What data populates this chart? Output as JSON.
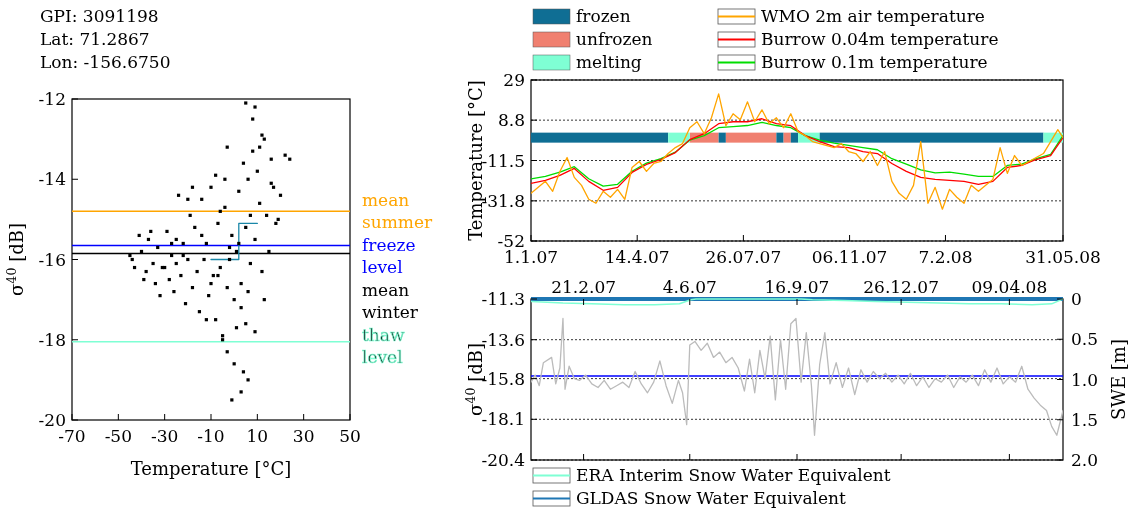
{
  "chart_data": [
    {
      "type": "scatter",
      "xlabel": "Temperature [°C]",
      "ylabel": "σ$^{40}$ [dB]",
      "annotations": [
        "GPI: 3091198",
        "Lat: 71.2867",
        "Lon: -156.6750"
      ],
      "xlim": [
        -70,
        50
      ],
      "xticks": [
        -70,
        -50,
        -30,
        -10,
        10,
        30,
        50
      ],
      "ylim": [
        -20,
        -12
      ],
      "yticks": [
        -20,
        -18,
        -16,
        -14,
        -12
      ],
      "ref_lines": [
        {
          "axis": "y",
          "value": -14.8,
          "label": "mean summer",
          "color": "#ffa500"
        },
        {
          "axis": "y",
          "value": -15.65,
          "label": "freeze level",
          "color": "#0000ff"
        },
        {
          "axis": "y",
          "value": -15.85,
          "label": "mean winter",
          "color": "#000000"
        },
        {
          "axis": "y",
          "value": -18.05,
          "label": "thaw level",
          "color": "#7fffd4"
        }
      ],
      "series": [
        {
          "color": "#000000",
          "marker": "square",
          "x": [
            -45,
            -43,
            -41,
            -40,
            -38,
            -37,
            -35,
            -34,
            -33,
            -32,
            -30,
            -29,
            -28,
            -27,
            -26,
            -25,
            -24,
            -23,
            -22,
            -21,
            -20,
            -19,
            -18,
            -17,
            -16,
            -15,
            -14,
            -13,
            -12,
            -11,
            -10,
            -9,
            -8,
            -7,
            -6,
            -5,
            -4,
            -3,
            -2,
            -1,
            0,
            1,
            2,
            3,
            4,
            5,
            6,
            7,
            8,
            9,
            10,
            11,
            12,
            13,
            14,
            15,
            16,
            17,
            18,
            20,
            22,
            24,
            -44,
            -39,
            -36,
            -31,
            -27,
            -22,
            -18,
            -14,
            -10,
            -6,
            -3,
            0,
            3,
            5,
            7,
            9,
            11,
            13,
            16,
            19,
            -12,
            -8,
            -5,
            -2,
            1,
            4,
            6,
            8,
            2,
            -4,
            -7,
            9,
            12,
            3,
            5,
            -1,
            -3,
            6,
            -20,
            -25
          ],
          "values": [
            -15.9,
            -16.2,
            -15.4,
            -15.8,
            -16.3,
            -15.5,
            -16.1,
            -16.6,
            -15.7,
            -16.9,
            -16.2,
            -15.3,
            -16.5,
            -15.9,
            -16.8,
            -16.1,
            -14.4,
            -16.4,
            -15.6,
            -17.1,
            -16.0,
            -14.9,
            -16.7,
            -15.2,
            -16.3,
            -17.3,
            -14.5,
            -16.0,
            -15.6,
            -16.9,
            -14.2,
            -16.4,
            -17.5,
            -15.1,
            -16.2,
            -17.9,
            -14.7,
            -18.3,
            -16.0,
            -15.4,
            -17.0,
            -15.8,
            -14.3,
            -16.6,
            -13.6,
            -15.2,
            -14.0,
            -16.1,
            -13.3,
            -15.5,
            -13.8,
            -14.6,
            -16.3,
            -13.0,
            -14.9,
            -15.8,
            -13.5,
            -14.2,
            -15.1,
            -14.4,
            -13.4,
            -13.5,
            -16.0,
            -16.5,
            -15.3,
            -16.2,
            -15.6,
            -15.9,
            -14.2,
            -15.4,
            -16.6,
            -14.8,
            -16.7,
            -18.6,
            -17.2,
            -12.1,
            -14.9,
            -17.8,
            -13.2,
            -17.0,
            -14.1,
            -15.0,
            -17.5,
            -13.9,
            -18.0,
            -15.7,
            -17.7,
            -18.8,
            -19.0,
            -12.5,
            -15.6,
            -14.0,
            -16.4,
            -12.2,
            -12.9,
            -19.3,
            -17.6,
            -19.5,
            -13.2,
            -16.8,
            -14.5,
            -15.5
          ]
        },
        {
          "type": "step",
          "color": "#1a87a8",
          "x": [
            -10,
            2,
            10
          ],
          "values": [
            -16,
            -15.1,
            -15.1
          ]
        }
      ]
    },
    {
      "type": "line",
      "ylabel": "Temperature [°C]",
      "legend": "top",
      "grid": "y",
      "xlim": [
        "2007-01-01",
        "2008-05-31"
      ],
      "xticks": [
        {
          "value": "2007-01-01",
          "label": "1.1.07"
        },
        {
          "value": "2007-04-14",
          "label": "14.4.07"
        },
        {
          "value": "2007-07-26",
          "label": "26.07.07"
        },
        {
          "value": "2007-11-06",
          "label": "06.11.07"
        },
        {
          "value": "2008-02-07",
          "label": "7.2.08"
        },
        {
          "value": "2008-05-31",
          "label": "31.05.08"
        }
      ],
      "ylim": [
        -52,
        29
      ],
      "yticks": [
        -52,
        -31.8,
        -11.5,
        8.8,
        29
      ],
      "bands": [
        {
          "axis": "x",
          "from": "2007-01-01",
          "to": "2007-05-14",
          "label": "frozen",
          "color": "#0f6e94"
        },
        {
          "axis": "x",
          "from": "2007-06-04",
          "to": "2007-07-02",
          "label": "unfrozen",
          "color": "#f08070"
        },
        {
          "axis": "x",
          "from": "2007-05-14",
          "to": "2007-06-04",
          "label": "melting",
          "color": "#7fffd4"
        },
        {
          "axis": "x",
          "from": "2007-07-02",
          "to": "2007-07-09",
          "color": "#0f6e94"
        },
        {
          "axis": "x",
          "from": "2007-07-09",
          "to": "2007-08-27",
          "color": "#f08070"
        },
        {
          "axis": "x",
          "from": "2007-08-27",
          "to": "2007-09-03",
          "color": "#0f6e94"
        },
        {
          "axis": "x",
          "from": "2007-09-03",
          "to": "2007-09-10",
          "color": "#f08070"
        },
        {
          "axis": "x",
          "from": "2007-09-10",
          "to": "2007-09-17",
          "color": "#0f6e94"
        },
        {
          "axis": "x",
          "from": "2007-09-17",
          "to": "2007-10-08",
          "color": "#7fffd4"
        },
        {
          "axis": "x",
          "from": "2007-10-08",
          "to": "2008-05-12",
          "color": "#0f6e94"
        },
        {
          "axis": "x",
          "from": "2008-05-12",
          "to": "2008-05-31",
          "color": "#7fffd4"
        }
      ],
      "series": [
        {
          "name": "WMO 2m air temperature",
          "color": "#ffa500",
          "x": [
            "2007-01-01",
            "2007-01-08",
            "2007-01-15",
            "2007-01-22",
            "2007-01-29",
            "2007-02-05",
            "2007-02-12",
            "2007-02-19",
            "2007-02-26",
            "2007-03-05",
            "2007-03-12",
            "2007-03-19",
            "2007-03-26",
            "2007-04-02",
            "2007-04-09",
            "2007-04-16",
            "2007-04-23",
            "2007-04-30",
            "2007-05-07",
            "2007-05-14",
            "2007-05-21",
            "2007-05-28",
            "2007-06-04",
            "2007-06-11",
            "2007-06-18",
            "2007-06-25",
            "2007-07-02",
            "2007-07-09",
            "2007-07-16",
            "2007-07-23",
            "2007-07-30",
            "2007-08-06",
            "2007-08-13",
            "2007-08-20",
            "2007-08-27",
            "2007-09-03",
            "2007-09-10",
            "2007-09-17",
            "2007-09-24",
            "2007-10-01",
            "2007-10-08",
            "2007-10-15",
            "2007-10-22",
            "2007-10-29",
            "2007-11-05",
            "2007-11-12",
            "2007-11-19",
            "2007-11-26",
            "2007-12-03",
            "2007-12-10",
            "2007-12-17",
            "2007-12-24",
            "2007-12-31",
            "2008-01-07",
            "2008-01-14",
            "2008-01-21",
            "2008-01-28",
            "2008-02-04",
            "2008-02-11",
            "2008-02-18",
            "2008-02-25",
            "2008-03-03",
            "2008-03-10",
            "2008-03-17",
            "2008-03-24",
            "2008-03-31",
            "2008-04-07",
            "2008-04-14",
            "2008-04-21",
            "2008-04-28",
            "2008-05-05",
            "2008-05-12",
            "2008-05-19",
            "2008-05-26",
            "2008-05-31"
          ],
          "values": [
            -28,
            -25,
            -22,
            -27,
            -17,
            -10,
            -20,
            -24,
            -31,
            -33,
            -27,
            -30,
            -26,
            -31,
            -15,
            -12,
            -17,
            -13,
            -12,
            -8,
            -5,
            -3,
            5,
            8,
            2,
            10,
            22,
            6,
            12,
            9,
            18,
            8,
            14,
            7,
            10,
            5,
            12,
            3,
            1,
            -2,
            -3,
            -4,
            -5,
            -3,
            -7,
            -8,
            -12,
            -7,
            -14,
            -7,
            -22,
            -28,
            -31,
            -24,
            -2,
            -33,
            -25,
            -36,
            -26,
            -30,
            -33,
            -24,
            -27,
            -24,
            -21,
            -5,
            -18,
            -9,
            -14,
            -12,
            -10,
            -8,
            -2,
            4,
            0
          ]
        },
        {
          "name": "Burrow 0.04m temperature",
          "color": "#ff0000",
          "x": [
            "2007-01-01",
            "2007-01-15",
            "2007-01-29",
            "2007-02-12",
            "2007-02-26",
            "2007-03-12",
            "2007-03-26",
            "2007-04-09",
            "2007-04-23",
            "2007-05-07",
            "2007-05-21",
            "2007-06-04",
            "2007-06-18",
            "2007-07-02",
            "2007-07-16",
            "2007-07-30",
            "2007-08-13",
            "2007-08-27",
            "2007-09-10",
            "2007-09-24",
            "2007-10-08",
            "2007-10-22",
            "2007-11-05",
            "2007-11-19",
            "2007-12-03",
            "2007-12-17",
            "2007-12-31",
            "2008-01-14",
            "2008-01-28",
            "2008-02-11",
            "2008-02-25",
            "2008-03-10",
            "2008-03-24",
            "2008-04-07",
            "2008-04-21",
            "2008-05-05",
            "2008-05-19",
            "2008-05-31"
          ],
          "values": [
            -23,
            -21.5,
            -19,
            -15.5,
            -22,
            -26.5,
            -25,
            -17.5,
            -13.5,
            -11,
            -7.5,
            -1,
            2,
            7,
            8,
            8,
            9.5,
            7,
            6,
            1,
            -2,
            -4.5,
            -5,
            -7,
            -8,
            -13,
            -17,
            -20,
            -21,
            -21.5,
            -22,
            -23.5,
            -22,
            -15,
            -14,
            -11,
            -9,
            0
          ]
        },
        {
          "name": "Burrow 0.1m temperature",
          "color": "#00dd00",
          "x": [
            "2007-01-01",
            "2007-01-15",
            "2007-01-29",
            "2007-02-12",
            "2007-02-26",
            "2007-03-12",
            "2007-03-26",
            "2007-04-09",
            "2007-04-23",
            "2007-05-07",
            "2007-05-21",
            "2007-06-04",
            "2007-06-18",
            "2007-07-02",
            "2007-07-16",
            "2007-07-30",
            "2007-08-13",
            "2007-08-27",
            "2007-09-10",
            "2007-09-24",
            "2007-10-08",
            "2007-10-22",
            "2007-11-05",
            "2007-11-19",
            "2007-12-03",
            "2007-12-17",
            "2007-12-31",
            "2008-01-14",
            "2008-01-28",
            "2008-02-11",
            "2008-02-25",
            "2008-03-10",
            "2008-03-24",
            "2008-04-07",
            "2008-04-21",
            "2008-05-05",
            "2008-05-19",
            "2008-05-31"
          ],
          "values": [
            -20.7,
            -19.5,
            -17.3,
            -14.6,
            -20.7,
            -24.4,
            -23.5,
            -16.9,
            -12.8,
            -10.6,
            -7.3,
            -1.2,
            1,
            5,
            5.5,
            6.1,
            7.7,
            6.1,
            5,
            1,
            -1.2,
            -2.8,
            -3.9,
            -5,
            -6.1,
            -10.6,
            -13.3,
            -16.2,
            -17.7,
            -17.3,
            -18.4,
            -19.5,
            -19.5,
            -14,
            -13.3,
            -10.6,
            -8.4,
            1
          ]
        }
      ]
    },
    {
      "type": "line",
      "ylabel": "σ$^{40}$ [dB]",
      "y2label": "SWE [m]",
      "legend": "bottom",
      "grid": "y",
      "xlim": [
        "2007-01-01",
        "2008-05-31"
      ],
      "xticks": [
        {
          "value": "2007-02-21",
          "label": "21.2.07"
        },
        {
          "value": "2007-06-04",
          "label": "4.6.07"
        },
        {
          "value": "2007-09-16",
          "label": "16.9.07"
        },
        {
          "value": "2007-12-26",
          "label": "26.12.07"
        },
        {
          "value": "2008-04-09",
          "label": "09.04.08"
        }
      ],
      "ylim": [
        -20.4,
        -11.3
      ],
      "yticks": [
        -20.4,
        -18.1,
        -15.8,
        -13.6,
        -11.3
      ],
      "y2lim": [
        2,
        0
      ],
      "y2ticks": [
        {
          "value": 2,
          "label": "2.0"
        },
        1.5,
        {
          "value": 1,
          "label": "1.0"
        },
        0.5,
        0
      ],
      "ref_lines": [
        {
          "axis": "y",
          "value": -15.65,
          "color": "#0000ff"
        }
      ],
      "series": [
        {
          "color": "#bbbbbb",
          "x": [
            "2007-01-01",
            "2007-01-05",
            "2007-01-09",
            "2007-01-13",
            "2007-01-21",
            "2007-01-25",
            "2007-01-29",
            "2007-02-01",
            "2007-02-03",
            "2007-02-07",
            "2007-02-12",
            "2007-02-17",
            "2007-02-23",
            "2007-03-01",
            "2007-03-07",
            "2007-03-13",
            "2007-03-19",
            "2007-03-25",
            "2007-03-31",
            "2007-04-06",
            "2007-04-12",
            "2007-04-18",
            "2007-04-24",
            "2007-04-30",
            "2007-05-06",
            "2007-05-12",
            "2007-05-18",
            "2007-05-24",
            "2007-05-28",
            "2007-06-01",
            "2007-06-04",
            "2007-06-09",
            "2007-06-15",
            "2007-06-21",
            "2007-06-27",
            "2007-07-03",
            "2007-07-09",
            "2007-07-15",
            "2007-07-21",
            "2007-07-27",
            "2007-08-01",
            "2007-08-06",
            "2007-08-11",
            "2007-08-16",
            "2007-08-21",
            "2007-08-26",
            "2007-08-31",
            "2007-09-05",
            "2007-09-10",
            "2007-09-15",
            "2007-09-20",
            "2007-09-25",
            "2007-09-30",
            "2007-10-03",
            "2007-10-08",
            "2007-10-13",
            "2007-10-18",
            "2007-10-24",
            "2007-10-30",
            "2007-11-05",
            "2007-11-11",
            "2007-11-17",
            "2007-11-23",
            "2007-11-29",
            "2007-12-05",
            "2007-12-11",
            "2007-12-17",
            "2007-12-23",
            "2007-12-29",
            "2008-01-04",
            "2008-01-10",
            "2008-01-16",
            "2008-01-22",
            "2008-01-28",
            "2008-02-03",
            "2008-02-09",
            "2008-02-15",
            "2008-02-21",
            "2008-02-27",
            "2008-03-04",
            "2008-03-10",
            "2008-03-16",
            "2008-03-22",
            "2008-03-28",
            "2008-04-03",
            "2008-04-09",
            "2008-04-15",
            "2008-04-21",
            "2008-04-27",
            "2008-05-03",
            "2008-05-09",
            "2008-05-15",
            "2008-05-20",
            "2008-05-25",
            "2008-05-31"
          ],
          "values": [
            -16.0,
            -15.6,
            -16.2,
            -14.9,
            -14.6,
            -16.1,
            -15.2,
            -12.4,
            -16.4,
            -15.1,
            -15.8,
            -15.9,
            -15.6,
            -16.1,
            -16.3,
            -15.9,
            -16.4,
            -16.2,
            -16.0,
            -16.3,
            -15.4,
            -16.1,
            -16.6,
            -16.0,
            -14.8,
            -16.2,
            -17.2,
            -15.9,
            -16.6,
            -18.4,
            -13.9,
            -13.7,
            -14.2,
            -13.8,
            -14.6,
            -14.3,
            -14.9,
            -14.6,
            -15.2,
            -16.5,
            -14.7,
            -16.6,
            -14.2,
            -15.8,
            -13.4,
            -17.0,
            -13.6,
            -16.4,
            -12.7,
            -12.4,
            -16.0,
            -13.2,
            -16.2,
            -19.0,
            -15.0,
            -13.2,
            -16.1,
            -14.9,
            -16.3,
            -15.2,
            -16.7,
            -15.3,
            -16.0,
            -15.4,
            -15.8,
            -15.5,
            -16.0,
            -15.6,
            -16.1,
            -15.5,
            -16.2,
            -15.7,
            -16.3,
            -15.8,
            -16.0,
            -15.6,
            -16.3,
            -15.7,
            -16.0,
            -15.6,
            -16.2,
            -15.3,
            -16.0,
            -15.2,
            -16.1,
            -15.7,
            -16.0,
            -15.1,
            -16.4,
            -16.9,
            -17.3,
            -17.6,
            -18.5,
            -19.0,
            -17.6
          ]
        },
        {
          "name": "ERA Interim Snow Water Equivalent",
          "color": "#7fffd4",
          "axis": "y2",
          "x": [
            "2007-01-01",
            "2007-02-01",
            "2007-03-01",
            "2007-04-01",
            "2007-05-01",
            "2007-05-25",
            "2007-06-05",
            "2007-06-10",
            "2007-09-20",
            "2007-10-01",
            "2007-11-01",
            "2007-12-01",
            "2008-01-01",
            "2008-02-01",
            "2008-03-01",
            "2008-04-01",
            "2008-05-01",
            "2008-05-20",
            "2008-05-31"
          ],
          "values": [
            0.03,
            0.05,
            0.06,
            0.07,
            0.07,
            0.06,
            0.01,
            0,
            0,
            0.01,
            0.02,
            0.03,
            0.04,
            0.05,
            0.06,
            0.06,
            0.07,
            0.06,
            0
          ]
        },
        {
          "name": "GLDAS Snow Water Equivalent",
          "color": "#1f77b4",
          "axis": "y2",
          "x": [
            "2007-01-01",
            "2008-05-31"
          ],
          "values": [
            0,
            0
          ]
        }
      ]
    }
  ]
}
